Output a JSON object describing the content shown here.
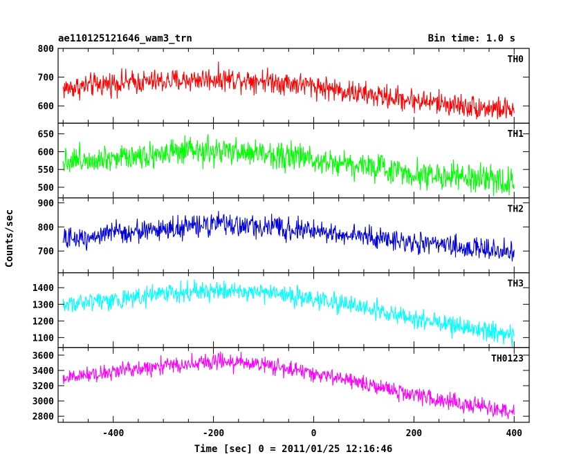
{
  "header": {
    "title": "ae110125121646_wam3_trn",
    "bin_time": "Bin time: 1.0 s"
  },
  "axes": {
    "xlabel": "Time [sec] 0 = 2011/01/25 12:16:46",
    "ylabel": "Counts/sec"
  },
  "chart_data": {
    "type": "line",
    "title": "ae110125121646_wam3_trn",
    "xlabel": "Time [sec] 0 = 2011/01/25 12:16:46",
    "ylabel": "Counts/sec",
    "xlim": [
      -510,
      430
    ],
    "xticks": [
      -400,
      -200,
      0,
      200,
      400
    ],
    "grid": false,
    "panels": [
      {
        "name": "TH0",
        "color": "#ff0000",
        "ylim": [
          540,
          800
        ],
        "yticks": [
          600,
          700,
          800
        ],
        "x": [
          -500,
          -400,
          -300,
          -200,
          -100,
          0,
          100,
          200,
          300,
          400
        ],
        "values": [
          660,
          680,
          685,
          695,
          690,
          670,
          640,
          620,
          600,
          585
        ],
        "noise": 34
      },
      {
        "name": "TH1",
        "color": "#00ff00",
        "ylim": [
          470,
          680
        ],
        "yticks": [
          500,
          550,
          600,
          650
        ],
        "x": [
          -500,
          -400,
          -300,
          -200,
          -100,
          0,
          100,
          200,
          300,
          400
        ],
        "values": [
          575,
          585,
          595,
          600,
          595,
          580,
          560,
          540,
          525,
          515
        ],
        "noise": 32
      },
      {
        "name": "TH2",
        "color": "#0000dd",
        "ylim": [
          610,
          920
        ],
        "yticks": [
          700,
          800,
          900
        ],
        "x": [
          -500,
          -400,
          -300,
          -200,
          -100,
          0,
          100,
          200,
          300,
          400
        ],
        "values": [
          745,
          775,
          790,
          810,
          800,
          785,
          760,
          735,
          715,
          695
        ],
        "noise": 38
      },
      {
        "name": "TH3",
        "color": "#00ffff",
        "ylim": [
          1040,
          1490
        ],
        "yticks": [
          1100,
          1200,
          1300,
          1400
        ],
        "x": [
          -500,
          -400,
          -300,
          -200,
          -100,
          0,
          100,
          200,
          300,
          400
        ],
        "values": [
          1300,
          1330,
          1360,
          1385,
          1370,
          1330,
          1280,
          1220,
          1160,
          1110
        ],
        "noise": 48
      },
      {
        "name": "TH0123",
        "color": "#ff00ff",
        "ylim": [
          2720,
          3700
        ],
        "yticks": [
          2800,
          3000,
          3200,
          3400,
          3600
        ],
        "x": [
          -500,
          -400,
          -300,
          -200,
          -100,
          0,
          100,
          200,
          300,
          400
        ],
        "values": [
          3300,
          3380,
          3460,
          3520,
          3480,
          3360,
          3220,
          3080,
          2950,
          2850
        ],
        "noise": 90
      }
    ]
  }
}
